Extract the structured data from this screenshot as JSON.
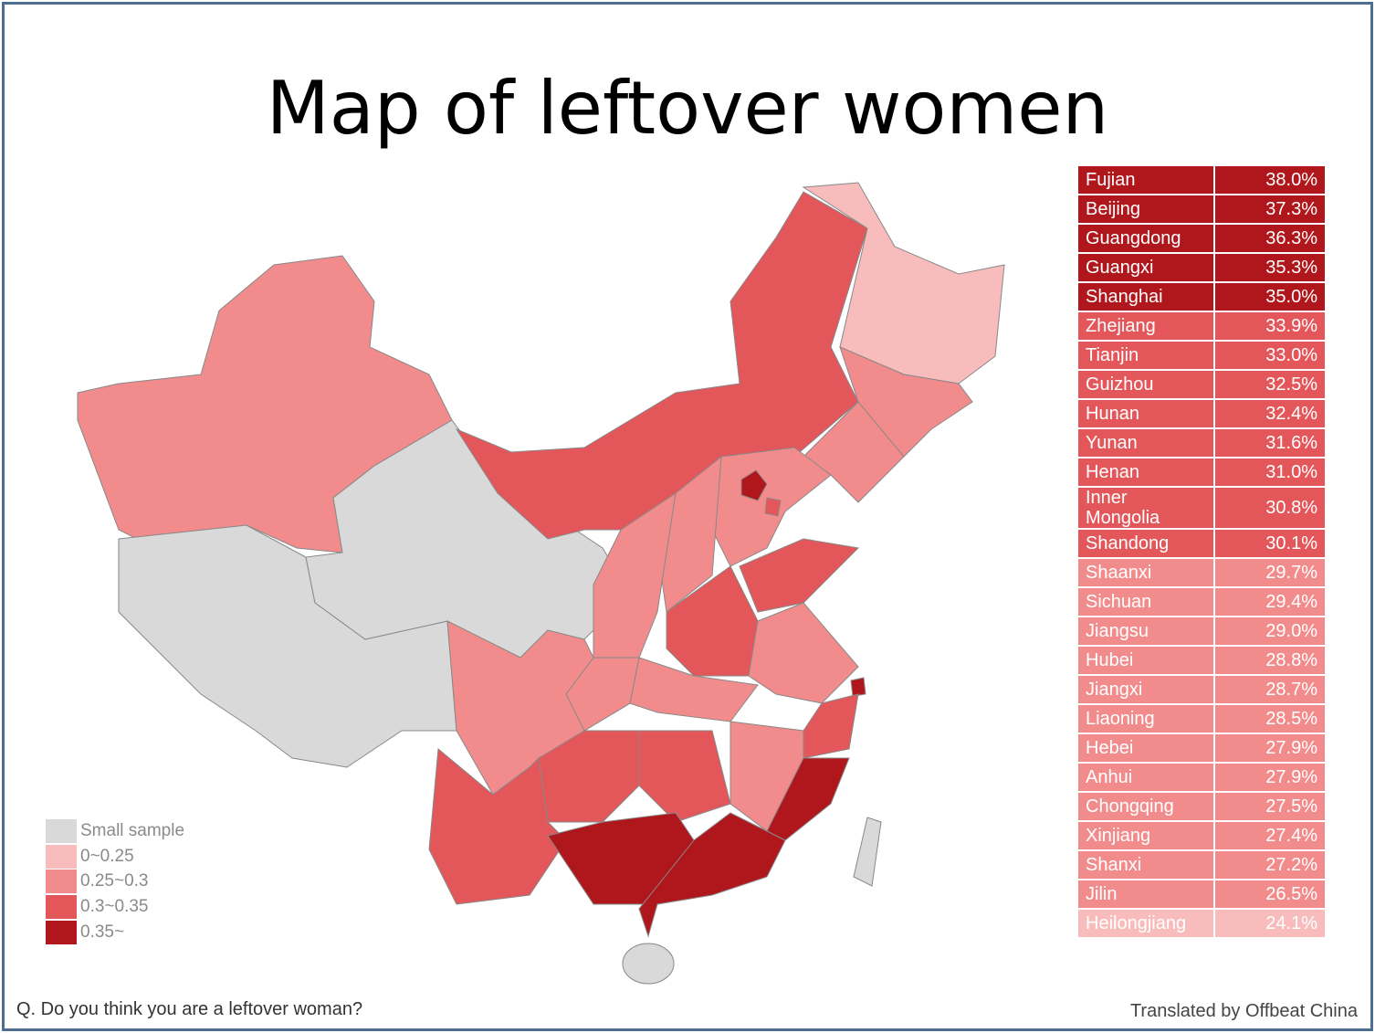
{
  "header": {
    "title": "Map of leftover women"
  },
  "table": {
    "rows": [
      {
        "name": "Fujian",
        "value": "38.0%",
        "color": "#b0171c"
      },
      {
        "name": "Beijing",
        "value": "37.3%",
        "color": "#b0171c"
      },
      {
        "name": "Guangdong",
        "value": "36.3%",
        "color": "#b0171c"
      },
      {
        "name": "Guangxi",
        "value": "35.3%",
        "color": "#b0171c"
      },
      {
        "name": "Shanghai",
        "value": "35.0%",
        "color": "#b0171c"
      },
      {
        "name": "Zhejiang",
        "value": "33.9%",
        "color": "#e3575b"
      },
      {
        "name": "Tianjin",
        "value": "33.0%",
        "color": "#e3575b"
      },
      {
        "name": "Guizhou",
        "value": "32.5%",
        "color": "#e3575b"
      },
      {
        "name": "Hunan",
        "value": "32.4%",
        "color": "#e3575b"
      },
      {
        "name": "Yunan",
        "value": "31.6%",
        "color": "#e3575b"
      },
      {
        "name": "Henan",
        "value": "31.0%",
        "color": "#e3575b"
      },
      {
        "name": "Inner Mongolia",
        "value": "30.8%",
        "color": "#e3575b"
      },
      {
        "name": "Shandong",
        "value": "30.1%",
        "color": "#e3575b"
      },
      {
        "name": "Shaanxi",
        "value": "29.7%",
        "color": "#f28c8c"
      },
      {
        "name": "Sichuan",
        "value": "29.4%",
        "color": "#f28c8c"
      },
      {
        "name": "Jiangsu",
        "value": "29.0%",
        "color": "#f28c8c"
      },
      {
        "name": "Hubei",
        "value": "28.8%",
        "color": "#f28c8c"
      },
      {
        "name": "Jiangxi",
        "value": "28.7%",
        "color": "#f28c8c"
      },
      {
        "name": "Liaoning",
        "value": "28.5%",
        "color": "#f28c8c"
      },
      {
        "name": "Hebei",
        "value": "27.9%",
        "color": "#f28c8c"
      },
      {
        "name": "Anhui",
        "value": "27.9%",
        "color": "#f28c8c"
      },
      {
        "name": "Chongqing",
        "value": "27.5%",
        "color": "#f28c8c"
      },
      {
        "name": "Xinjiang",
        "value": "27.4%",
        "color": "#f28c8c"
      },
      {
        "name": "Shanxi",
        "value": "27.2%",
        "color": "#f28c8c"
      },
      {
        "name": "Jilin",
        "value": "26.5%",
        "color": "#f28c8c"
      },
      {
        "name": "Heilongjiang",
        "value": "24.1%",
        "color": "#f9bcbc"
      }
    ]
  },
  "legend": {
    "items": [
      {
        "label": "Small sample",
        "color": "#d9d9d9"
      },
      {
        "label": "0~0.25",
        "color": "#f9bcbc"
      },
      {
        "label": "0.25~0.3",
        "color": "#f28c8c"
      },
      {
        "label": "0.3~0.35",
        "color": "#e3575b"
      },
      {
        "label": "0.35~",
        "color": "#b0171c"
      }
    ]
  },
  "footnote": "Q. Do you think you are a leftover woman?",
  "credit": "Translated by Offbeat China"
}
